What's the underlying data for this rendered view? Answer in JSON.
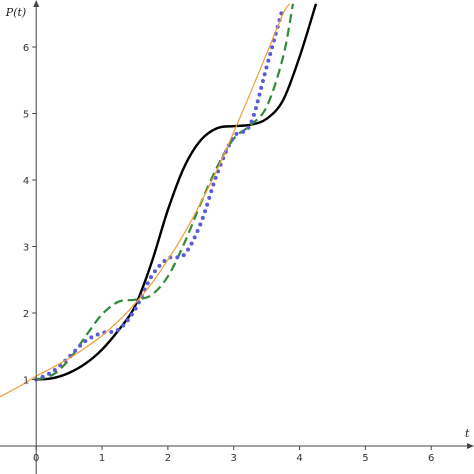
{
  "chart_data": {
    "type": "line",
    "title": "",
    "xlabel": "t",
    "ylabel": "P(t)",
    "xlim": [
      -0.55,
      6.65
    ],
    "ylim": [
      0,
      6.6
    ],
    "xticks": [
      0,
      1,
      2,
      3,
      4,
      5,
      6
    ],
    "yticks": [
      1,
      2,
      3,
      4,
      5,
      6
    ],
    "grid": false,
    "legend": "none",
    "series": [
      {
        "style": "solid",
        "color": "#000000",
        "x": [
          0,
          0.25,
          0.5,
          0.75,
          1.0,
          1.25,
          1.5,
          1.75,
          2.0,
          2.25,
          2.5,
          2.75,
          3.0,
          3.25,
          3.5,
          3.75,
          4.0,
          4.25
        ],
        "y": [
          1.0,
          1.02,
          1.1,
          1.24,
          1.45,
          1.74,
          2.1,
          2.75,
          3.55,
          4.2,
          4.6,
          4.78,
          4.81,
          4.83,
          4.92,
          5.2,
          5.85,
          6.65
        ]
      },
      {
        "style": "dashed",
        "color": "#2e8b3a",
        "x": [
          0,
          0.25,
          0.5,
          0.75,
          1.0,
          1.25,
          1.5,
          1.75,
          2.0,
          2.25,
          2.5,
          2.75,
          3.0,
          3.25,
          3.5,
          3.75,
          3.9
        ],
        "y": [
          1.0,
          1.07,
          1.3,
          1.65,
          1.98,
          2.17,
          2.2,
          2.27,
          2.55,
          3.05,
          3.65,
          4.2,
          4.62,
          4.82,
          5.1,
          5.85,
          6.65
        ]
      },
      {
        "style": "dotted",
        "color": "#5b5bd6",
        "x": [
          0,
          0.25,
          0.5,
          0.75,
          1.0,
          1.25,
          1.5,
          1.75,
          2.0,
          2.25,
          2.5,
          2.75,
          3.0,
          3.25,
          3.5,
          3.75
        ],
        "y": [
          1.0,
          1.12,
          1.34,
          1.58,
          1.7,
          1.75,
          2.05,
          2.55,
          2.82,
          2.88,
          3.35,
          4.1,
          4.65,
          4.83,
          5.7,
          6.6
        ]
      },
      {
        "style": "solid",
        "color": "#f39c3a",
        "x": [
          -0.55,
          -0.25,
          0,
          0.25,
          0.5,
          0.75,
          1.0,
          1.25,
          1.5,
          1.75,
          2.0,
          2.25,
          2.5,
          2.75,
          3.0,
          3.25,
          3.5,
          3.75,
          3.85
        ],
        "y": [
          0.74,
          0.9,
          1.05,
          1.18,
          1.32,
          1.48,
          1.66,
          1.88,
          2.14,
          2.44,
          2.8,
          3.2,
          3.66,
          4.16,
          4.72,
          5.3,
          5.9,
          6.5,
          6.65
        ]
      }
    ]
  }
}
